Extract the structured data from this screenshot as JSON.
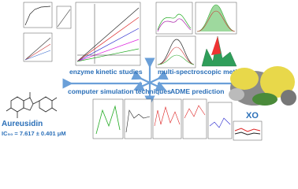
{
  "labels": {
    "kinetics": "enzyme kinetic studies",
    "spectroscopy": "multi-spectroscopic methods",
    "simulation": "computer simulation techniques",
    "adme": "ADME prediction",
    "compound": "Aureusidin",
    "ic50": "IC₅₀ = 7.617 ± 0.401 μM",
    "enzyme": "XO"
  }
}
